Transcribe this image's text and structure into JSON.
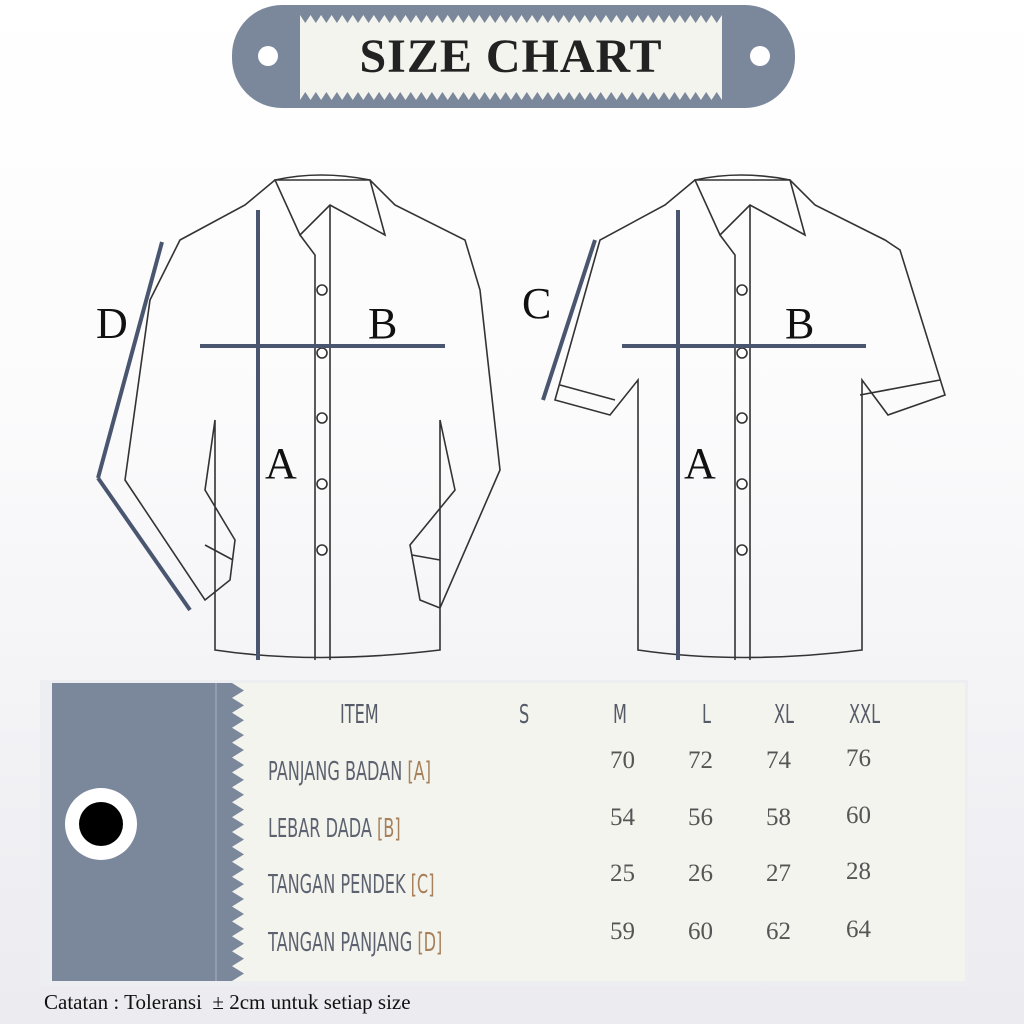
{
  "header": {
    "title": "SIZE CHART"
  },
  "diagram": {
    "long_sleeve_labels": [
      "D",
      "B",
      "A"
    ],
    "short_sleeve_labels": [
      "C",
      "B",
      "A"
    ]
  },
  "colors": {
    "slate": "#7b879b",
    "cream": "#f4f4ee",
    "bracket": "#a6805a"
  },
  "table": {
    "headers": [
      "ITEM",
      "S",
      "M",
      "L",
      "XL",
      "XXL"
    ],
    "rows": [
      {
        "label": "PANJANG BADAN",
        "code": "[A]",
        "values": [
          "",
          "70",
          "72",
          "74",
          "76"
        ]
      },
      {
        "label": "LEBAR DADA",
        "code": "[B]",
        "values": [
          "",
          "54",
          "56",
          "58",
          "60"
        ]
      },
      {
        "label": "TANGAN PENDEK",
        "code": "[C]",
        "values": [
          "",
          "25",
          "26",
          "27",
          "28"
        ]
      },
      {
        "label": "TANGAN PANJANG",
        "code": "[D]",
        "values": [
          "",
          "59",
          "60",
          "62",
          "64"
        ]
      }
    ]
  },
  "note": "Catatan : Toleransi  ± 2cm untuk setiap size"
}
